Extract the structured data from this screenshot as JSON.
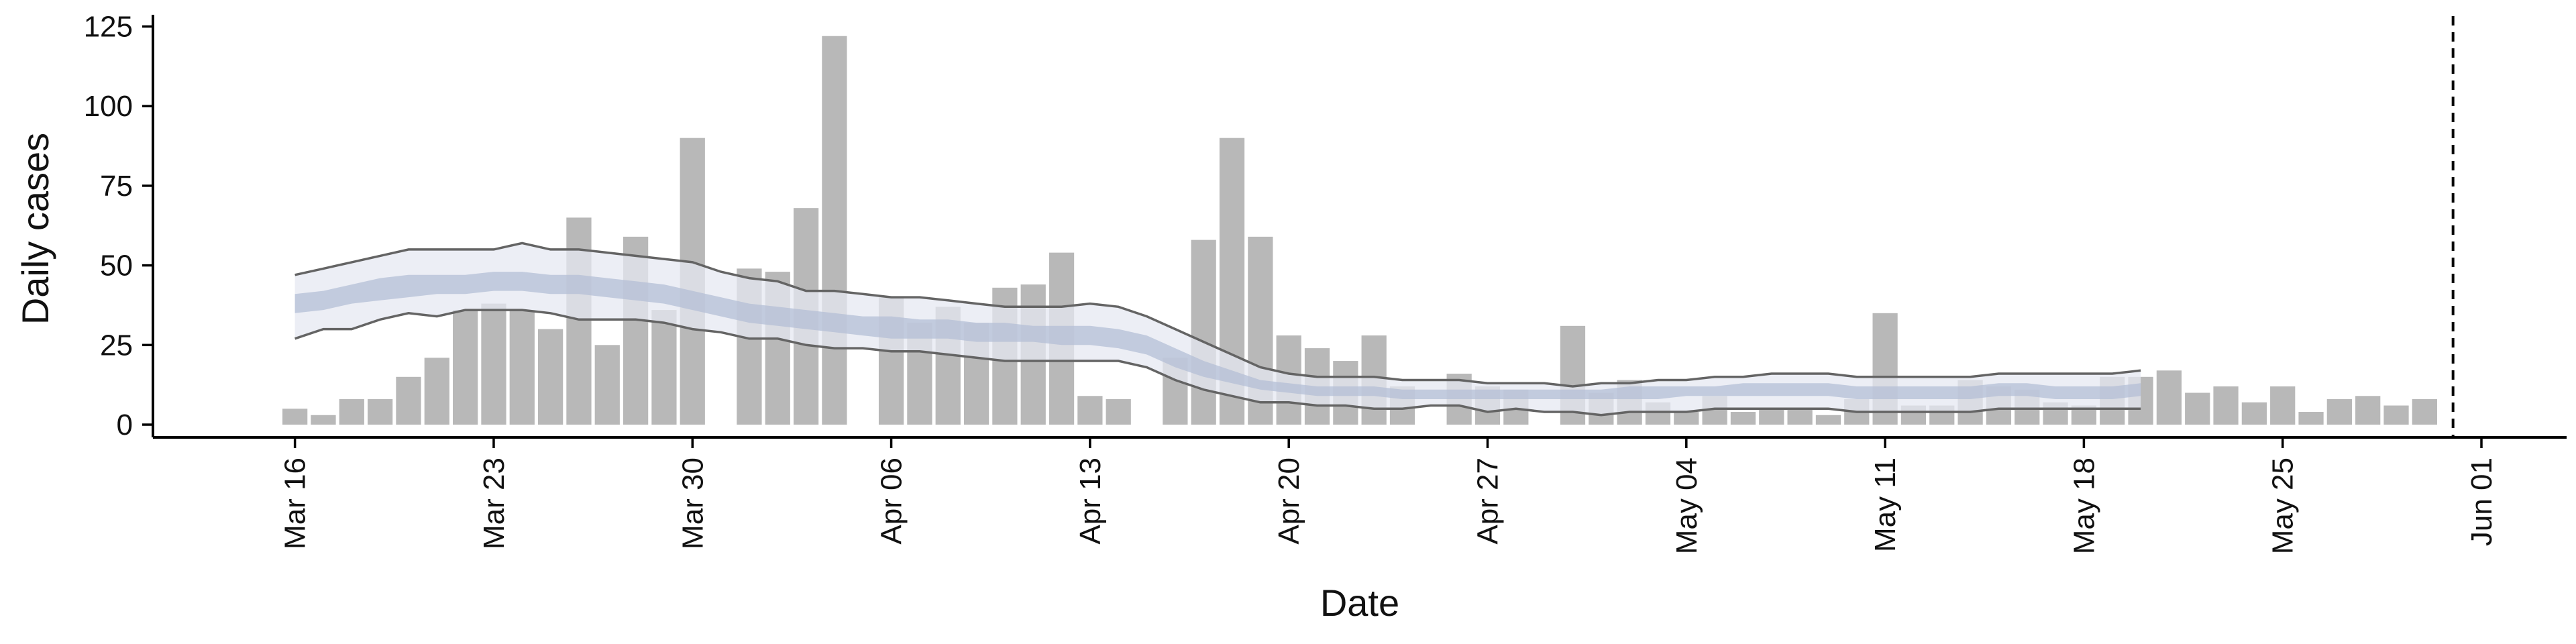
{
  "chart_data": {
    "type": "bar",
    "xlabel": "Date",
    "ylabel": "Daily cases",
    "ylim": [
      -4,
      127
    ],
    "xlim": [
      "2020-03-11",
      "2020-06-04"
    ],
    "yticks": [
      0,
      25,
      50,
      75,
      100,
      125
    ],
    "xticks": [
      {
        "date": "2020-03-16",
        "label": "Mar 16"
      },
      {
        "date": "2020-03-23",
        "label": "Mar 23"
      },
      {
        "date": "2020-03-30",
        "label": "Mar 30"
      },
      {
        "date": "2020-04-06",
        "label": "Apr 06"
      },
      {
        "date": "2020-04-13",
        "label": "Apr 13"
      },
      {
        "date": "2020-04-20",
        "label": "Apr 20"
      },
      {
        "date": "2020-04-27",
        "label": "Apr 27"
      },
      {
        "date": "2020-05-04",
        "label": "May 04"
      },
      {
        "date": "2020-05-11",
        "label": "May 11"
      },
      {
        "date": "2020-05-18",
        "label": "May 18"
      },
      {
        "date": "2020-05-25",
        "label": "May 25"
      },
      {
        "date": "2020-06-01",
        "label": "Jun 01"
      }
    ],
    "bars": {
      "start_date": "2020-03-16",
      "values": [
        5,
        3,
        8,
        8,
        15,
        21,
        36,
        38,
        36,
        30,
        65,
        25,
        59,
        36,
        90,
        0,
        49,
        48,
        68,
        122,
        0,
        40,
        32,
        37,
        32,
        43,
        44,
        54,
        9,
        8,
        0,
        21,
        58,
        90,
        59,
        28,
        24,
        20,
        28,
        12,
        0,
        16,
        12,
        11,
        0,
        31,
        10,
        14,
        7,
        4,
        9,
        4,
        5,
        5,
        3,
        8,
        35,
        6,
        6,
        14,
        12,
        11,
        7,
        6,
        15,
        15,
        17,
        10,
        12,
        7,
        12,
        4,
        8,
        9,
        6,
        8
      ],
      "color": "#b8b8b8"
    },
    "band": {
      "start_date": "2020-03-16",
      "outer_upper": [
        47,
        49,
        51,
        53,
        55,
        55,
        55,
        55,
        57,
        55,
        55,
        54,
        53,
        52,
        51,
        48,
        46,
        45,
        42,
        42,
        41,
        40,
        40,
        39,
        38,
        37,
        37,
        37,
        38,
        37,
        34,
        30,
        26,
        22,
        18,
        16,
        15,
        15,
        15,
        14,
        14,
        14,
        13,
        13,
        13,
        12,
        13,
        13,
        14,
        14,
        15,
        15,
        16,
        16,
        16,
        15,
        15,
        15,
        15,
        15,
        16,
        16,
        16,
        16,
        16,
        17
      ],
      "inner_upper": [
        41,
        42,
        44,
        46,
        47,
        47,
        47,
        48,
        48,
        47,
        47,
        46,
        45,
        44,
        42,
        40,
        38,
        37,
        36,
        35,
        34,
        34,
        33,
        33,
        32,
        32,
        31,
        31,
        31,
        30,
        28,
        24,
        20,
        17,
        14,
        13,
        12,
        12,
        12,
        11,
        11,
        11,
        11,
        11,
        11,
        11,
        11,
        12,
        12,
        12,
        12,
        13,
        13,
        13,
        13,
        12,
        12,
        12,
        12,
        12,
        13,
        13,
        12,
        12,
        12,
        13
      ],
      "median": [
        38,
        39,
        41,
        42,
        43,
        44,
        44,
        45,
        45,
        44,
        44,
        43,
        42,
        41,
        39,
        37,
        35,
        34,
        33,
        32,
        31,
        30,
        30,
        30,
        29,
        29,
        29,
        28,
        28,
        27,
        25,
        21,
        18,
        15,
        13,
        12,
        11,
        11,
        11,
        10,
        10,
        10,
        10,
        10,
        10,
        10,
        10,
        10,
        10,
        11,
        11,
        11,
        11,
        11,
        11,
        10,
        10,
        10,
        10,
        10,
        11,
        11,
        10,
        10,
        10,
        11
      ],
      "inner_lower": [
        35,
        36,
        38,
        39,
        40,
        41,
        41,
        42,
        42,
        41,
        41,
        40,
        39,
        38,
        36,
        34,
        32,
        31,
        30,
        29,
        28,
        27,
        27,
        27,
        26,
        26,
        26,
        25,
        25,
        24,
        22,
        18,
        15,
        13,
        11,
        10,
        9,
        9,
        9,
        8,
        8,
        8,
        8,
        8,
        8,
        8,
        8,
        8,
        8,
        9,
        9,
        9,
        9,
        9,
        9,
        8,
        8,
        8,
        8,
        8,
        9,
        9,
        8,
        8,
        8,
        9
      ],
      "outer_lower": [
        27,
        30,
        30,
        33,
        35,
        34,
        36,
        36,
        36,
        35,
        33,
        33,
        33,
        32,
        30,
        29,
        27,
        27,
        25,
        24,
        24,
        23,
        23,
        22,
        21,
        20,
        20,
        20,
        20,
        20,
        18,
        14,
        11,
        9,
        7,
        7,
        6,
        6,
        5,
        5,
        6,
        6,
        4,
        5,
        4,
        4,
        3,
        4,
        4,
        4,
        5,
        5,
        5,
        5,
        5,
        4,
        4,
        4,
        4,
        4,
        5,
        5,
        5,
        5,
        5,
        5
      ],
      "outer_color": "#e6e8f1",
      "inner_color": "#b4bfd6",
      "edge_color": "#646464"
    },
    "vline": {
      "date": "2020-05-31",
      "style": "dashed"
    },
    "grid": false,
    "legend": "none"
  }
}
